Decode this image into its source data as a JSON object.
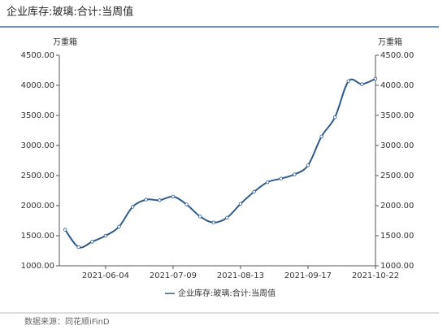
{
  "chart_data": {
    "type": "line",
    "title": "企业库存:玻璃:合计:当周值",
    "y_label": "万重箱",
    "y2_label": "万重箱",
    "x": [
      "2021-05-14",
      "2021-05-21",
      "2021-05-28",
      "2021-06-04",
      "2021-06-11",
      "2021-06-18",
      "2021-06-25",
      "2021-07-02",
      "2021-07-09",
      "2021-07-16",
      "2021-07-23",
      "2021-07-30",
      "2021-08-06",
      "2021-08-13",
      "2021-08-20",
      "2021-08-27",
      "2021-09-03",
      "2021-09-10",
      "2021-09-17",
      "2021-09-24",
      "2021-10-01",
      "2021-10-08",
      "2021-10-15",
      "2021-10-22"
    ],
    "series": [
      {
        "name": "企业库存:玻璃:合计:当周值",
        "color": "#2e5b8a",
        "values": [
          1600,
          1310,
          1400,
          1500,
          1650,
          1980,
          2100,
          2090,
          2150,
          2020,
          1820,
          1720,
          1800,
          2030,
          2230,
          2390,
          2450,
          2520,
          2670,
          3150,
          3470,
          4070,
          4020,
          4110
        ]
      }
    ],
    "xlim": [
      "2021-05-11",
      "2021-10-22"
    ],
    "xticks": [
      "2021-06-04",
      "2021-07-09",
      "2021-08-13",
      "2021-09-17",
      "2021-10-22"
    ],
    "ylim": [
      1000,
      4500
    ],
    "yticks": [
      {
        "value": 1000,
        "label": "1000.00"
      },
      {
        "value": 1500,
        "label": "1500.00"
      },
      {
        "value": 2000,
        "label": "2000.00"
      },
      {
        "value": 2500,
        "label": "2500.00"
      },
      {
        "value": 3000,
        "label": "3000.00"
      },
      {
        "value": 3500,
        "label": "3500.00"
      },
      {
        "value": 4000,
        "label": "4000.00"
      },
      {
        "value": 4500,
        "label": "4500.00"
      }
    ],
    "y2lim": [
      1000,
      4500
    ],
    "y2ticks": [
      {
        "value": 1000,
        "label": "1000.00"
      },
      {
        "value": 1500,
        "label": "1500.00"
      },
      {
        "value": 2000,
        "label": "2000.00"
      },
      {
        "value": 2500,
        "label": "2500.00"
      },
      {
        "value": 3000,
        "label": "3000.00"
      },
      {
        "value": 3500,
        "label": "3500.00"
      },
      {
        "value": 4000,
        "label": "4000.00"
      },
      {
        "value": 4500,
        "label": "4500.00"
      }
    ],
    "source": "数据来源：同花顺iFinD"
  }
}
